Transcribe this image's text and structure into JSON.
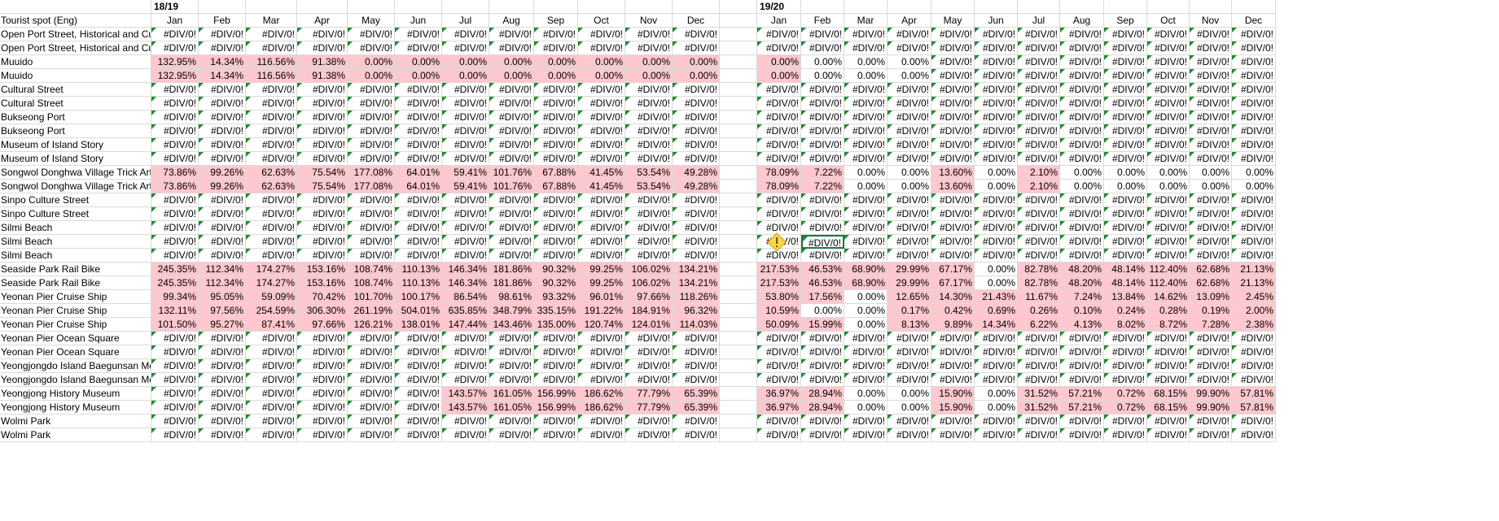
{
  "header": {
    "period_1_label": "18/19",
    "period_2_label": "19/20",
    "name_header": "Tourist spot (Eng)",
    "months": [
      "Jan",
      "Feb",
      "Mar",
      "Apr",
      "May",
      "Jun",
      "Jul",
      "Aug",
      "Sep",
      "Oct",
      "Nov",
      "Dec"
    ]
  },
  "colors": {
    "highlight_fill": "#ffc7ce",
    "error_marker": "#1e8c30",
    "selection_border": "#217346",
    "grid_line": "#dadada"
  },
  "rows": [
    {
      "name": "Open Port Street, Historical and Cult",
      "p1": [
        "#DIV/0!",
        "#DIV/0!",
        "#DIV/0!",
        "#DIV/0!",
        "#DIV/0!",
        "#DIV/0!",
        "#DIV/0!",
        "#DIV/0!",
        "#DIV/0!",
        "#DIV/0!",
        "#DIV/0!",
        "#DIV/0!"
      ],
      "p2": [
        "#DIV/0!",
        "#DIV/0!",
        "#DIV/0!",
        "#DIV/0!",
        "#DIV/0!",
        "#DIV/0!",
        "#DIV/0!",
        "#DIV/0!",
        "#DIV/0!",
        "#DIV/0!",
        "#DIV/0!",
        "#DIV/0!"
      ]
    },
    {
      "name": "Open Port Street, Historical and Cult",
      "p1": [
        "#DIV/0!",
        "#DIV/0!",
        "#DIV/0!",
        "#DIV/0!",
        "#DIV/0!",
        "#DIV/0!",
        "#DIV/0!",
        "#DIV/0!",
        "#DIV/0!",
        "#DIV/0!",
        "#DIV/0!",
        "#DIV/0!"
      ],
      "p2": [
        "#DIV/0!",
        "#DIV/0!",
        "#DIV/0!",
        "#DIV/0!",
        "#DIV/0!",
        "#DIV/0!",
        "#DIV/0!",
        "#DIV/0!",
        "#DIV/0!",
        "#DIV/0!",
        "#DIV/0!",
        "#DIV/0!"
      ]
    },
    {
      "name": "Muuido",
      "p1": [
        "132.95%",
        "14.34%",
        "116.56%",
        "91.38%",
        "0.00%",
        "0.00%",
        "0.00%",
        "0.00%",
        "0.00%",
        "0.00%",
        "0.00%",
        "0.00%"
      ],
      "p2": [
        "0.00%",
        "0.00%",
        "0.00%",
        "0.00%",
        "#DIV/0!",
        "#DIV/0!",
        "#DIV/0!",
        "#DIV/0!",
        "#DIV/0!",
        "#DIV/0!",
        "#DIV/0!",
        "#DIV/0!"
      ]
    },
    {
      "name": "Muuido",
      "p1": [
        "132.95%",
        "14.34%",
        "116.56%",
        "91.38%",
        "0.00%",
        "0.00%",
        "0.00%",
        "0.00%",
        "0.00%",
        "0.00%",
        "0.00%",
        "0.00%"
      ],
      "p2": [
        "0.00%",
        "0.00%",
        "0.00%",
        "0.00%",
        "#DIV/0!",
        "#DIV/0!",
        "#DIV/0!",
        "#DIV/0!",
        "#DIV/0!",
        "#DIV/0!",
        "#DIV/0!",
        "#DIV/0!"
      ]
    },
    {
      "name": "Cultural Street",
      "p1": [
        "#DIV/0!",
        "#DIV/0!",
        "#DIV/0!",
        "#DIV/0!",
        "#DIV/0!",
        "#DIV/0!",
        "#DIV/0!",
        "#DIV/0!",
        "#DIV/0!",
        "#DIV/0!",
        "#DIV/0!",
        "#DIV/0!"
      ],
      "p2": [
        "#DIV/0!",
        "#DIV/0!",
        "#DIV/0!",
        "#DIV/0!",
        "#DIV/0!",
        "#DIV/0!",
        "#DIV/0!",
        "#DIV/0!",
        "#DIV/0!",
        "#DIV/0!",
        "#DIV/0!",
        "#DIV/0!"
      ]
    },
    {
      "name": "Cultural Street",
      "p1": [
        "#DIV/0!",
        "#DIV/0!",
        "#DIV/0!",
        "#DIV/0!",
        "#DIV/0!",
        "#DIV/0!",
        "#DIV/0!",
        "#DIV/0!",
        "#DIV/0!",
        "#DIV/0!",
        "#DIV/0!",
        "#DIV/0!"
      ],
      "p2": [
        "#DIV/0!",
        "#DIV/0!",
        "#DIV/0!",
        "#DIV/0!",
        "#DIV/0!",
        "#DIV/0!",
        "#DIV/0!",
        "#DIV/0!",
        "#DIV/0!",
        "#DIV/0!",
        "#DIV/0!",
        "#DIV/0!"
      ]
    },
    {
      "name": "Bukseong Port",
      "p1": [
        "#DIV/0!",
        "#DIV/0!",
        "#DIV/0!",
        "#DIV/0!",
        "#DIV/0!",
        "#DIV/0!",
        "#DIV/0!",
        "#DIV/0!",
        "#DIV/0!",
        "#DIV/0!",
        "#DIV/0!",
        "#DIV/0!"
      ],
      "p2": [
        "#DIV/0!",
        "#DIV/0!",
        "#DIV/0!",
        "#DIV/0!",
        "#DIV/0!",
        "#DIV/0!",
        "#DIV/0!",
        "#DIV/0!",
        "#DIV/0!",
        "#DIV/0!",
        "#DIV/0!",
        "#DIV/0!"
      ]
    },
    {
      "name": "Bukseong Port",
      "p1": [
        "#DIV/0!",
        "#DIV/0!",
        "#DIV/0!",
        "#DIV/0!",
        "#DIV/0!",
        "#DIV/0!",
        "#DIV/0!",
        "#DIV/0!",
        "#DIV/0!",
        "#DIV/0!",
        "#DIV/0!",
        "#DIV/0!"
      ],
      "p2": [
        "#DIV/0!",
        "#DIV/0!",
        "#DIV/0!",
        "#DIV/0!",
        "#DIV/0!",
        "#DIV/0!",
        "#DIV/0!",
        "#DIV/0!",
        "#DIV/0!",
        "#DIV/0!",
        "#DIV/0!",
        "#DIV/0!"
      ]
    },
    {
      "name": "Museum of Island Story",
      "p1": [
        "#DIV/0!",
        "#DIV/0!",
        "#DIV/0!",
        "#DIV/0!",
        "#DIV/0!",
        "#DIV/0!",
        "#DIV/0!",
        "#DIV/0!",
        "#DIV/0!",
        "#DIV/0!",
        "#DIV/0!",
        "#DIV/0!"
      ],
      "p2": [
        "#DIV/0!",
        "#DIV/0!",
        "#DIV/0!",
        "#DIV/0!",
        "#DIV/0!",
        "#DIV/0!",
        "#DIV/0!",
        "#DIV/0!",
        "#DIV/0!",
        "#DIV/0!",
        "#DIV/0!",
        "#DIV/0!"
      ]
    },
    {
      "name": "Museum of Island Story",
      "p1": [
        "#DIV/0!",
        "#DIV/0!",
        "#DIV/0!",
        "#DIV/0!",
        "#DIV/0!",
        "#DIV/0!",
        "#DIV/0!",
        "#DIV/0!",
        "#DIV/0!",
        "#DIV/0!",
        "#DIV/0!",
        "#DIV/0!"
      ],
      "p2": [
        "#DIV/0!",
        "#DIV/0!",
        "#DIV/0!",
        "#DIV/0!",
        "#DIV/0!",
        "#DIV/0!",
        "#DIV/0!",
        "#DIV/0!",
        "#DIV/0!",
        "#DIV/0!",
        "#DIV/0!",
        "#DIV/0!"
      ]
    },
    {
      "name": "Songwol Donghwa Village Trick Art",
      "p1": [
        "73.86%",
        "99.26%",
        "62.63%",
        "75.54%",
        "177.08%",
        "64.01%",
        "59.41%",
        "101.76%",
        "67.88%",
        "41.45%",
        "53.54%",
        "49.28%"
      ],
      "p2": [
        "78.09%",
        "7.22%",
        "0.00%",
        "0.00%",
        "13.60%",
        "0.00%",
        "2.10%",
        "0.00%",
        "0.00%",
        "0.00%",
        "0.00%",
        "0.00%"
      ]
    },
    {
      "name": "Songwol Donghwa Village Trick Art",
      "p1": [
        "73.86%",
        "99.26%",
        "62.63%",
        "75.54%",
        "177.08%",
        "64.01%",
        "59.41%",
        "101.76%",
        "67.88%",
        "41.45%",
        "53.54%",
        "49.28%"
      ],
      "p2": [
        "78.09%",
        "7.22%",
        "0.00%",
        "0.00%",
        "13.60%",
        "0.00%",
        "2.10%",
        "0.00%",
        "0.00%",
        "0.00%",
        "0.00%",
        "0.00%"
      ]
    },
    {
      "name": "Sinpo Culture Street",
      "p1": [
        "#DIV/0!",
        "#DIV/0!",
        "#DIV/0!",
        "#DIV/0!",
        "#DIV/0!",
        "#DIV/0!",
        "#DIV/0!",
        "#DIV/0!",
        "#DIV/0!",
        "#DIV/0!",
        "#DIV/0!",
        "#DIV/0!"
      ],
      "p2": [
        "#DIV/0!",
        "#DIV/0!",
        "#DIV/0!",
        "#DIV/0!",
        "#DIV/0!",
        "#DIV/0!",
        "#DIV/0!",
        "#DIV/0!",
        "#DIV/0!",
        "#DIV/0!",
        "#DIV/0!",
        "#DIV/0!"
      ]
    },
    {
      "name": "Sinpo Culture Street",
      "p1": [
        "#DIV/0!",
        "#DIV/0!",
        "#DIV/0!",
        "#DIV/0!",
        "#DIV/0!",
        "#DIV/0!",
        "#DIV/0!",
        "#DIV/0!",
        "#DIV/0!",
        "#DIV/0!",
        "#DIV/0!",
        "#DIV/0!"
      ],
      "p2": [
        "#DIV/0!",
        "#DIV/0!",
        "#DIV/0!",
        "#DIV/0!",
        "#DIV/0!",
        "#DIV/0!",
        "#DIV/0!",
        "#DIV/0!",
        "#DIV/0!",
        "#DIV/0!",
        "#DIV/0!",
        "#DIV/0!"
      ]
    },
    {
      "name": "Silmi Beach",
      "p1": [
        "#DIV/0!",
        "#DIV/0!",
        "#DIV/0!",
        "#DIV/0!",
        "#DIV/0!",
        "#DIV/0!",
        "#DIV/0!",
        "#DIV/0!",
        "#DIV/0!",
        "#DIV/0!",
        "#DIV/0!",
        "#DIV/0!"
      ],
      "p2": [
        "#DIV/0!",
        "#DIV/0!",
        "#DIV/0!",
        "#DIV/0!",
        "#DIV/0!",
        "#DIV/0!",
        "#DIV/0!",
        "#DIV/0!",
        "#DIV/0!",
        "#DIV/0!",
        "#DIV/0!",
        "#DIV/0!"
      ]
    },
    {
      "name": "Silmi Beach",
      "p1": [
        "#DIV/0!",
        "#DIV/0!",
        "#DIV/0!",
        "#DIV/0!",
        "#DIV/0!",
        "#DIV/0!",
        "#DIV/0!",
        "#DIV/0!",
        "#DIV/0!",
        "#DIV/0!",
        "#DIV/0!",
        "#DIV/0!"
      ],
      "p2": [
        "#DIV/0!",
        "#DIV/0!",
        "#DIV/0!",
        "#DIV/0!",
        "#DIV/0!",
        "#DIV/0!",
        "#DIV/0!",
        "#DIV/0!",
        "#DIV/0!",
        "#DIV/0!",
        "#DIV/0!",
        "#DIV/0!"
      ]
    },
    {
      "name": "Silmi Beach",
      "p1": [
        "#DIV/0!",
        "#DIV/0!",
        "#DIV/0!",
        "#DIV/0!",
        "#DIV/0!",
        "#DIV/0!",
        "#DIV/0!",
        "#DIV/0!",
        "#DIV/0!",
        "#DIV/0!",
        "#DIV/0!",
        "#DIV/0!"
      ],
      "p2": [
        "#DIV/0!",
        "#DIV/0!",
        "#DIV/0!",
        "#DIV/0!",
        "#DIV/0!",
        "#DIV/0!",
        "#DIV/0!",
        "#DIV/0!",
        "#DIV/0!",
        "#DIV/0!",
        "#DIV/0!",
        "#DIV/0!"
      ]
    },
    {
      "name": "Seaside Park Rail Bike",
      "p1": [
        "245.35%",
        "112.34%",
        "174.27%",
        "153.16%",
        "108.74%",
        "110.13%",
        "146.34%",
        "181.86%",
        "90.32%",
        "99.25%",
        "106.02%",
        "134.21%"
      ],
      "p2": [
        "217.53%",
        "46.53%",
        "68.90%",
        "29.99%",
        "67.17%",
        "0.00%",
        "82.78%",
        "48.20%",
        "48.14%",
        "112.40%",
        "62.68%",
        "21.13%"
      ]
    },
    {
      "name": "Seaside Park Rail Bike",
      "p1": [
        "245.35%",
        "112.34%",
        "174.27%",
        "153.16%",
        "108.74%",
        "110.13%",
        "146.34%",
        "181.86%",
        "90.32%",
        "99.25%",
        "106.02%",
        "134.21%"
      ],
      "p2": [
        "217.53%",
        "46.53%",
        "68.90%",
        "29.99%",
        "67.17%",
        "0.00%",
        "82.78%",
        "48.20%",
        "48.14%",
        "112.40%",
        "62.68%",
        "21.13%"
      ]
    },
    {
      "name": "Yeonan Pier Cruise Ship",
      "p1": [
        "99.34%",
        "95.05%",
        "59.09%",
        "70.42%",
        "101.70%",
        "100.17%",
        "86.54%",
        "98.61%",
        "93.32%",
        "96.01%",
        "97.66%",
        "118.26%"
      ],
      "p2": [
        "53.80%",
        "17.56%",
        "0.00%",
        "12.65%",
        "14.30%",
        "21.43%",
        "11.67%",
        "7.24%",
        "13.84%",
        "14.62%",
        "13.09%",
        "2.45%"
      ]
    },
    {
      "name": "Yeonan Pier Cruise Ship",
      "p1": [
        "132.11%",
        "97.56%",
        "254.59%",
        "306.30%",
        "261.19%",
        "504.01%",
        "635.85%",
        "348.79%",
        "335.15%",
        "191.22%",
        "184.91%",
        "96.32%"
      ],
      "p2": [
        "10.59%",
        "0.00%",
        "0.00%",
        "0.17%",
        "0.42%",
        "0.69%",
        "0.26%",
        "0.10%",
        "0.24%",
        "0.28%",
        "0.19%",
        "2.00%"
      ]
    },
    {
      "name": "Yeonan Pier Cruise Ship",
      "p1": [
        "101.50%",
        "95.27%",
        "87.41%",
        "97.66%",
        "126.21%",
        "138.01%",
        "147.44%",
        "143.46%",
        "135.00%",
        "120.74%",
        "124.01%",
        "114.03%"
      ],
      "p2": [
        "50.09%",
        "15.99%",
        "0.00%",
        "8.13%",
        "9.89%",
        "14.34%",
        "6.22%",
        "4.13%",
        "8.02%",
        "8.72%",
        "7.28%",
        "2.38%"
      ]
    },
    {
      "name": "Yeonan Pier Ocean Square",
      "p1": [
        "#DIV/0!",
        "#DIV/0!",
        "#DIV/0!",
        "#DIV/0!",
        "#DIV/0!",
        "#DIV/0!",
        "#DIV/0!",
        "#DIV/0!",
        "#DIV/0!",
        "#DIV/0!",
        "#DIV/0!",
        "#DIV/0!"
      ],
      "p2": [
        "#DIV/0!",
        "#DIV/0!",
        "#DIV/0!",
        "#DIV/0!",
        "#DIV/0!",
        "#DIV/0!",
        "#DIV/0!",
        "#DIV/0!",
        "#DIV/0!",
        "#DIV/0!",
        "#DIV/0!",
        "#DIV/0!"
      ]
    },
    {
      "name": "Yeonan Pier Ocean Square",
      "p1": [
        "#DIV/0!",
        "#DIV/0!",
        "#DIV/0!",
        "#DIV/0!",
        "#DIV/0!",
        "#DIV/0!",
        "#DIV/0!",
        "#DIV/0!",
        "#DIV/0!",
        "#DIV/0!",
        "#DIV/0!",
        "#DIV/0!"
      ],
      "p2": [
        "#DIV/0!",
        "#DIV/0!",
        "#DIV/0!",
        "#DIV/0!",
        "#DIV/0!",
        "#DIV/0!",
        "#DIV/0!",
        "#DIV/0!",
        "#DIV/0!",
        "#DIV/0!",
        "#DIV/0!",
        "#DIV/0!"
      ]
    },
    {
      "name": "Yeongjongdo Island Baegunsan Mo",
      "p1": [
        "#DIV/0!",
        "#DIV/0!",
        "#DIV/0!",
        "#DIV/0!",
        "#DIV/0!",
        "#DIV/0!",
        "#DIV/0!",
        "#DIV/0!",
        "#DIV/0!",
        "#DIV/0!",
        "#DIV/0!",
        "#DIV/0!"
      ],
      "p2": [
        "#DIV/0!",
        "#DIV/0!",
        "#DIV/0!",
        "#DIV/0!",
        "#DIV/0!",
        "#DIV/0!",
        "#DIV/0!",
        "#DIV/0!",
        "#DIV/0!",
        "#DIV/0!",
        "#DIV/0!",
        "#DIV/0!"
      ]
    },
    {
      "name": "Yeongjongdo Island Baegunsan Mo",
      "p1": [
        "#DIV/0!",
        "#DIV/0!",
        "#DIV/0!",
        "#DIV/0!",
        "#DIV/0!",
        "#DIV/0!",
        "#DIV/0!",
        "#DIV/0!",
        "#DIV/0!",
        "#DIV/0!",
        "#DIV/0!",
        "#DIV/0!"
      ],
      "p2": [
        "#DIV/0!",
        "#DIV/0!",
        "#DIV/0!",
        "#DIV/0!",
        "#DIV/0!",
        "#DIV/0!",
        "#DIV/0!",
        "#DIV/0!",
        "#DIV/0!",
        "#DIV/0!",
        "#DIV/0!",
        "#DIV/0!"
      ]
    },
    {
      "name": "Yeongjong History Museum",
      "p1": [
        "#DIV/0!",
        "#DIV/0!",
        "#DIV/0!",
        "#DIV/0!",
        "#DIV/0!",
        "#DIV/0!",
        "143.57%",
        "161.05%",
        "156.99%",
        "186.62%",
        "77.79%",
        "65.39%"
      ],
      "p2": [
        "36.97%",
        "28.94%",
        "0.00%",
        "0.00%",
        "15.90%",
        "0.00%",
        "31.52%",
        "57.21%",
        "0.72%",
        "68.15%",
        "99.90%",
        "57.81%"
      ]
    },
    {
      "name": "Yeongjong History Museum",
      "p1": [
        "#DIV/0!",
        "#DIV/0!",
        "#DIV/0!",
        "#DIV/0!",
        "#DIV/0!",
        "#DIV/0!",
        "143.57%",
        "161.05%",
        "156.99%",
        "186.62%",
        "77.79%",
        "65.39%"
      ],
      "p2": [
        "36.97%",
        "28.94%",
        "0.00%",
        "0.00%",
        "15.90%",
        "0.00%",
        "31.52%",
        "57.21%",
        "0.72%",
        "68.15%",
        "99.90%",
        "57.81%"
      ]
    },
    {
      "name": "Wolmi Park",
      "p1": [
        "#DIV/0!",
        "#DIV/0!",
        "#DIV/0!",
        "#DIV/0!",
        "#DIV/0!",
        "#DIV/0!",
        "#DIV/0!",
        "#DIV/0!",
        "#DIV/0!",
        "#DIV/0!",
        "#DIV/0!",
        "#DIV/0!"
      ],
      "p2": [
        "#DIV/0!",
        "#DIV/0!",
        "#DIV/0!",
        "#DIV/0!",
        "#DIV/0!",
        "#DIV/0!",
        "#DIV/0!",
        "#DIV/0!",
        "#DIV/0!",
        "#DIV/0!",
        "#DIV/0!",
        "#DIV/0!"
      ]
    },
    {
      "name": "Wolmi Park",
      "p1": [
        "#DIV/0!",
        "#DIV/0!",
        "#DIV/0!",
        "#DIV/0!",
        "#DIV/0!",
        "#DIV/0!",
        "#DIV/0!",
        "#DIV/0!",
        "#DIV/0!",
        "#DIV/0!",
        "#DIV/0!",
        "#DIV/0!"
      ],
      "p2": [
        "#DIV/0!",
        "#DIV/0!",
        "#DIV/0!",
        "#DIV/0!",
        "#DIV/0!",
        "#DIV/0!",
        "#DIV/0!",
        "#DIV/0!",
        "#DIV/0!",
        "#DIV/0!",
        "#DIV/0!",
        "#DIV/0!"
      ]
    }
  ],
  "selected_cell": {
    "row": 15,
    "period": 2,
    "month": "Feb"
  },
  "warning_cell": {
    "row": 15,
    "period": 2,
    "month": "Jan",
    "icon": "warning-icon"
  }
}
